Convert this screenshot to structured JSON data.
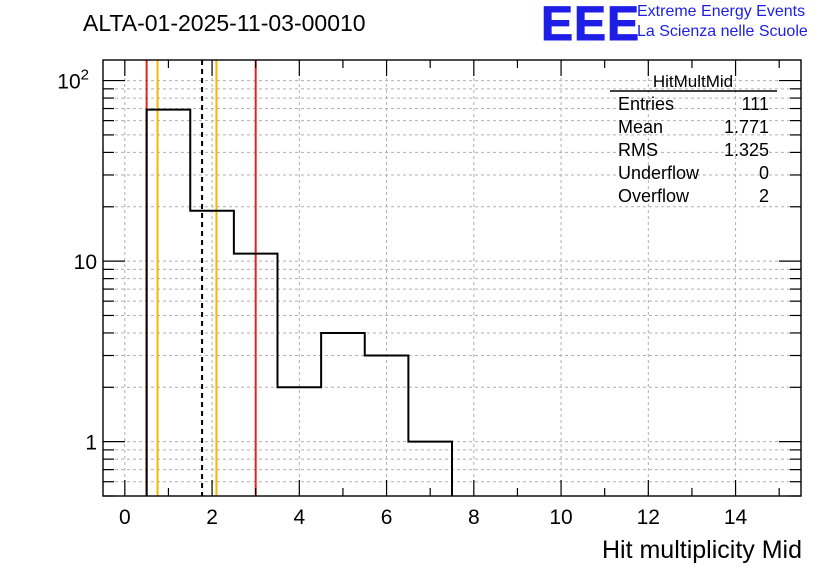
{
  "header": {
    "run_title": "ALTA-01-2025-11-03-00010",
    "logo_text": "EEE",
    "logo_line1": "Extreme Energy Events",
    "logo_line2": "La Scienza nelle Scuole"
  },
  "stats": {
    "name": "HitMultMid",
    "rows": [
      {
        "label": "Entries",
        "value": "111"
      },
      {
        "label": "Mean",
        "value": "1.771"
      },
      {
        "label": "RMS",
        "value": "1.325"
      },
      {
        "label": "Underflow",
        "value": "0"
      },
      {
        "label": "Overflow",
        "value": "2"
      }
    ]
  },
  "colors": {
    "hist": "#000000",
    "red": "#e8201c",
    "orange": "#f5b800",
    "grid": "#b0b0b0",
    "logo": "#1e1ee6"
  },
  "chart_data": {
    "type": "histogram",
    "title": "ALTA-01-2025-11-03-00010",
    "xlabel": "Hit multiplicity Mid",
    "ylabel": "",
    "y_scale": "log",
    "xlim": [
      -0.5,
      15.5
    ],
    "ylim": [
      0.5,
      130
    ],
    "x_ticks": [
      0,
      2,
      4,
      6,
      8,
      10,
      12,
      14
    ],
    "x_tick_labels": [
      "0",
      "2",
      "4",
      "6",
      "8",
      "10",
      "12",
      "14"
    ],
    "y_ticks": [
      1,
      10,
      100
    ],
    "y_tick_labels": [
      "1",
      "10",
      "10²"
    ],
    "bins": [
      {
        "lo": 0.5,
        "hi": 1.5,
        "count": 69
      },
      {
        "lo": 1.5,
        "hi": 2.5,
        "count": 19
      },
      {
        "lo": 2.5,
        "hi": 3.5,
        "count": 11
      },
      {
        "lo": 3.5,
        "hi": 4.5,
        "count": 2
      },
      {
        "lo": 4.5,
        "hi": 5.5,
        "count": 4
      },
      {
        "lo": 5.5,
        "hi": 6.5,
        "count": 3
      },
      {
        "lo": 6.5,
        "hi": 7.5,
        "count": 1
      }
    ],
    "vlines": [
      {
        "x": 0.5,
        "color": "red",
        "style": "solid"
      },
      {
        "x": 0.75,
        "color": "orange",
        "style": "solid"
      },
      {
        "x": 1.771,
        "color": "black",
        "style": "dashed"
      },
      {
        "x": 2.1,
        "color": "orange",
        "style": "solid"
      },
      {
        "x": 3.0,
        "color": "red",
        "style": "solid"
      }
    ],
    "grid": true
  }
}
